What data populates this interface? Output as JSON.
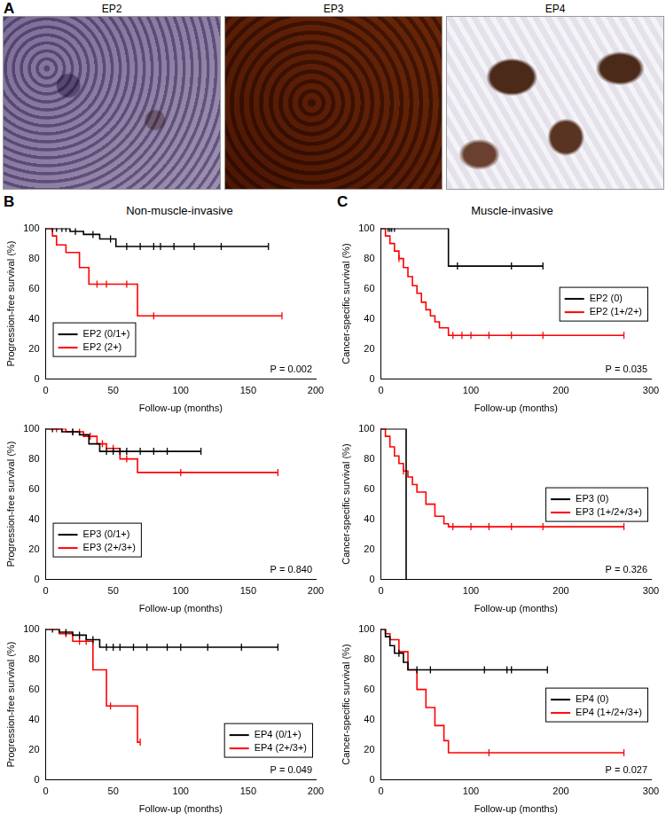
{
  "figure": {
    "panel_a": {
      "label": "A",
      "images": [
        "EP2",
        "EP3",
        "EP4"
      ]
    },
    "panel_b": {
      "label": "B",
      "title": "Non-muscle-invasive"
    },
    "panel_c": {
      "label": "C",
      "title": "Muscle-invasive"
    }
  },
  "chart_data": [
    {
      "type": "step",
      "ylabel": "Progression-free survival (%)",
      "xlabel": "Follow-up (months)",
      "xlim": [
        0,
        200
      ],
      "xticks": [
        0,
        50,
        100,
        150,
        200
      ],
      "ylim": [
        0,
        100
      ],
      "yticks": [
        0,
        20,
        40,
        60,
        80,
        100
      ],
      "grid": false,
      "legend": "lower left",
      "annotations": [
        {
          "text": "P = 0.002"
        }
      ],
      "series": [
        {
          "name": "EP2 (0/1+)",
          "color": "#000000",
          "line_style": "solid",
          "x": [
            0,
            18,
            28,
            40,
            52,
            165
          ],
          "values": [
            100,
            98,
            96,
            93,
            88,
            88
          ],
          "censored_x": [
            5,
            8,
            12,
            15,
            22,
            35,
            48,
            60,
            70,
            80,
            85,
            95,
            110,
            130,
            165
          ],
          "censored_y": [
            100,
            100,
            100,
            100,
            98,
            96,
            93,
            88,
            88,
            88,
            88,
            88,
            88,
            88,
            88
          ]
        },
        {
          "name": "EP2 (2+)",
          "color": "#ff0000",
          "line_style": "solid",
          "x": [
            0,
            5,
            8,
            15,
            25,
            32,
            68,
            175
          ],
          "values": [
            100,
            95,
            89,
            84,
            74,
            63,
            42,
            42
          ],
          "censored_x": [
            38,
            45,
            60,
            80,
            175
          ],
          "censored_y": [
            63,
            63,
            63,
            42,
            42
          ]
        }
      ]
    },
    {
      "type": "step",
      "ylabel": "Progression-free survival (%)",
      "xlabel": "Follow-up (months)",
      "xlim": [
        0,
        200
      ],
      "xticks": [
        0,
        50,
        100,
        150,
        200
      ],
      "ylim": [
        0,
        100
      ],
      "yticks": [
        0,
        20,
        40,
        60,
        80,
        100
      ],
      "grid": false,
      "legend": "lower left",
      "annotations": [
        {
          "text": "P = 0.840"
        }
      ],
      "series": [
        {
          "name": "EP3 (0/1+)",
          "color": "#000000",
          "line_style": "solid",
          "x": [
            0,
            12,
            25,
            32,
            40,
            115
          ],
          "values": [
            100,
            98,
            96,
            90,
            85,
            85
          ],
          "censored_x": [
            5,
            20,
            45,
            50,
            55,
            60,
            70,
            80,
            90,
            115
          ],
          "censored_y": [
            100,
            98,
            85,
            85,
            85,
            85,
            85,
            85,
            85,
            85
          ]
        },
        {
          "name": "EP3 (2+/3+)",
          "color": "#ff0000",
          "line_style": "solid",
          "x": [
            0,
            15,
            28,
            38,
            45,
            55,
            68,
            172
          ],
          "values": [
            100,
            98,
            95,
            90,
            87,
            80,
            71,
            71
          ],
          "censored_x": [
            8,
            12,
            20,
            25,
            33,
            42,
            50,
            60,
            100,
            172
          ],
          "censored_y": [
            100,
            100,
            98,
            98,
            95,
            90,
            87,
            80,
            71,
            71
          ]
        }
      ]
    },
    {
      "type": "step",
      "ylabel": "Progression-free survival (%)",
      "xlabel": "Follow-up (months)",
      "xlim": [
        0,
        200
      ],
      "xticks": [
        0,
        50,
        100,
        150,
        200
      ],
      "ylim": [
        0,
        100
      ],
      "yticks": [
        0,
        20,
        40,
        60,
        80,
        100
      ],
      "grid": false,
      "legend": "lower right",
      "annotations": [
        {
          "text": "P = 0.049"
        }
      ],
      "series": [
        {
          "name": "EP4 (0/1+)",
          "color": "#000000",
          "line_style": "solid",
          "x": [
            0,
            10,
            20,
            30,
            40,
            172
          ],
          "values": [
            100,
            98,
            96,
            93,
            88,
            88
          ],
          "censored_x": [
            5,
            15,
            25,
            35,
            45,
            50,
            55,
            65,
            75,
            90,
            100,
            120,
            145,
            172
          ],
          "censored_y": [
            100,
            98,
            96,
            93,
            88,
            88,
            88,
            88,
            88,
            88,
            88,
            88,
            88,
            88
          ]
        },
        {
          "name": "EP4 (2+/3+)",
          "color": "#ff0000",
          "line_style": "solid",
          "x": [
            0,
            10,
            20,
            35,
            45,
            68,
            70
          ],
          "values": [
            100,
            97,
            92,
            73,
            49,
            25,
            25
          ],
          "censored_x": [
            15,
            25,
            30,
            48,
            70
          ],
          "censored_y": [
            97,
            92,
            92,
            49,
            25
          ]
        }
      ]
    },
    {
      "type": "step",
      "ylabel": "Cancer-specific survival (%)",
      "xlabel": "Follow-up (months)",
      "xlim": [
        0,
        300
      ],
      "xticks": [
        0,
        100,
        200,
        300
      ],
      "ylim": [
        0,
        100
      ],
      "yticks": [
        0,
        20,
        40,
        60,
        80,
        100
      ],
      "grid": false,
      "legend": "center right",
      "annotations": [
        {
          "text": "P = 0.035"
        }
      ],
      "series": [
        {
          "name": "EP2 (0)",
          "color": "#000000",
          "line_style": "solid",
          "x": [
            0,
            75,
            180
          ],
          "values": [
            100,
            75,
            75
          ],
          "censored_x": [
            8,
            10,
            12,
            15,
            85,
            145,
            180
          ],
          "censored_y": [
            100,
            100,
            100,
            100,
            75,
            75,
            75
          ]
        },
        {
          "name": "EP2 (1+/2+)",
          "color": "#ff0000",
          "line_style": "solid",
          "x": [
            0,
            5,
            10,
            15,
            20,
            25,
            30,
            35,
            40,
            45,
            50,
            55,
            60,
            65,
            75,
            270
          ],
          "values": [
            100,
            95,
            90,
            85,
            80,
            74,
            68,
            62,
            57,
            51,
            46,
            42,
            38,
            34,
            29,
            29
          ],
          "censored_x": [
            20,
            80,
            90,
            100,
            120,
            145,
            180,
            270
          ],
          "censored_y": [
            80,
            29,
            29,
            29,
            29,
            29,
            29,
            29
          ]
        }
      ]
    },
    {
      "type": "step",
      "ylabel": "Cancer-specific survival (%)",
      "xlabel": "Follow-up (months)",
      "xlim": [
        0,
        300
      ],
      "xticks": [
        0,
        100,
        200,
        300
      ],
      "ylim": [
        0,
        100
      ],
      "yticks": [
        0,
        20,
        40,
        60,
        80,
        100
      ],
      "grid": false,
      "legend": "center right",
      "annotations": [
        {
          "text": "P = 0.326"
        }
      ],
      "series": [
        {
          "name": "EP3 (0)",
          "color": "#000000",
          "line_style": "solid",
          "x": [
            0,
            28
          ],
          "values": [
            100,
            0
          ],
          "censored_x": [],
          "censored_y": []
        },
        {
          "name": "EP3 (1+/2+/3+)",
          "color": "#ff0000",
          "line_style": "solid",
          "x": [
            0,
            5,
            10,
            15,
            20,
            25,
            30,
            35,
            40,
            50,
            60,
            70,
            75,
            270
          ],
          "values": [
            100,
            95,
            88,
            82,
            77,
            72,
            68,
            63,
            58,
            50,
            42,
            37,
            35,
            35
          ],
          "censored_x": [
            25,
            80,
            100,
            120,
            145,
            180,
            270
          ],
          "censored_y": [
            72,
            35,
            35,
            35,
            35,
            35,
            35
          ]
        }
      ]
    },
    {
      "type": "step",
      "ylabel": "Cancer-specific survival (%)",
      "xlabel": "Follow-up (months)",
      "xlim": [
        0,
        300
      ],
      "xticks": [
        0,
        100,
        200,
        300
      ],
      "ylim": [
        0,
        100
      ],
      "yticks": [
        0,
        20,
        40,
        60,
        80,
        100
      ],
      "grid": false,
      "legend": "center right",
      "annotations": [
        {
          "text": "P = 0.027"
        }
      ],
      "series": [
        {
          "name": "EP4 (0)",
          "color": "#000000",
          "line_style": "solid",
          "x": [
            0,
            5,
            10,
            15,
            25,
            30,
            185
          ],
          "values": [
            100,
            95,
            89,
            84,
            78,
            73,
            73
          ],
          "censored_x": [
            20,
            40,
            55,
            115,
            140,
            145,
            185
          ],
          "censored_y": [
            84,
            73,
            73,
            73,
            73,
            73,
            73
          ]
        },
        {
          "name": "EP4 (1+/2+/3+)",
          "color": "#ff0000",
          "line_style": "solid",
          "x": [
            0,
            5,
            10,
            20,
            30,
            40,
            50,
            60,
            70,
            75,
            270
          ],
          "values": [
            100,
            97,
            93,
            85,
            73,
            60,
            48,
            36,
            26,
            18,
            18
          ],
          "censored_x": [
            120,
            270
          ],
          "censored_y": [
            18,
            18
          ]
        }
      ]
    }
  ]
}
